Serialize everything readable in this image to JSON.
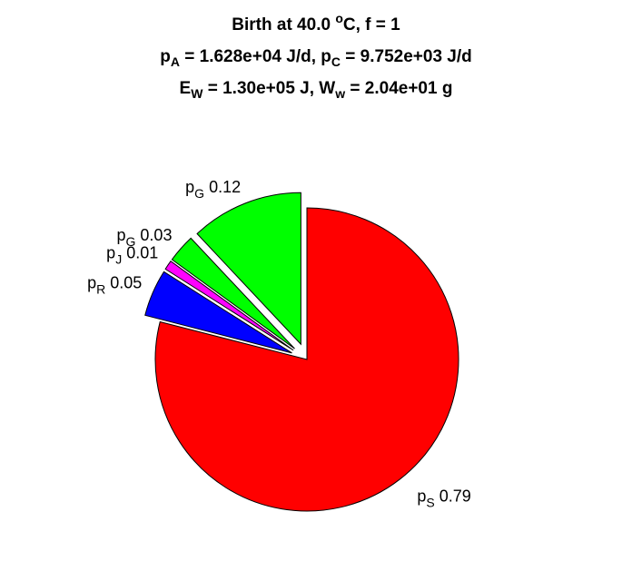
{
  "title": {
    "line1": {
      "prefix": "Birth at 40.0 ",
      "deg": "o",
      "suffix": "C, f = 1"
    },
    "line2": {
      "a_sym": "p",
      "a_sub": "A",
      "a_val": " = 1.628e+04 J/d, ",
      "c_sym": "p",
      "c_sub": "C",
      "c_val": " = 9.752e+03 J/d"
    },
    "line3": {
      "e_sym": "E",
      "e_sub": "W",
      "e_val": " = 1.30e+05 J, ",
      "w_sym": "W",
      "w_sub": "w",
      "w_val": " = 2.04e+01 g"
    }
  },
  "chart_data": {
    "type": "pie",
    "start": "12 o'clock",
    "direction": "clockwise",
    "explode": [
      false,
      true,
      true,
      true,
      true
    ],
    "slices": [
      {
        "sym": "p",
        "sub": "S",
        "value": 0.79,
        "color": "#ff0000"
      },
      {
        "sym": "p",
        "sub": "R",
        "value": 0.05,
        "color": "#0000ff"
      },
      {
        "sym": "p",
        "sub": "J",
        "value": 0.01,
        "color": "#ff00ff"
      },
      {
        "sym": "p",
        "sub": "G",
        "value": 0.03,
        "color": "#00ff00"
      },
      {
        "sym": "p",
        "sub": "G",
        "value": 0.12,
        "color": "#00ff00"
      }
    ]
  }
}
